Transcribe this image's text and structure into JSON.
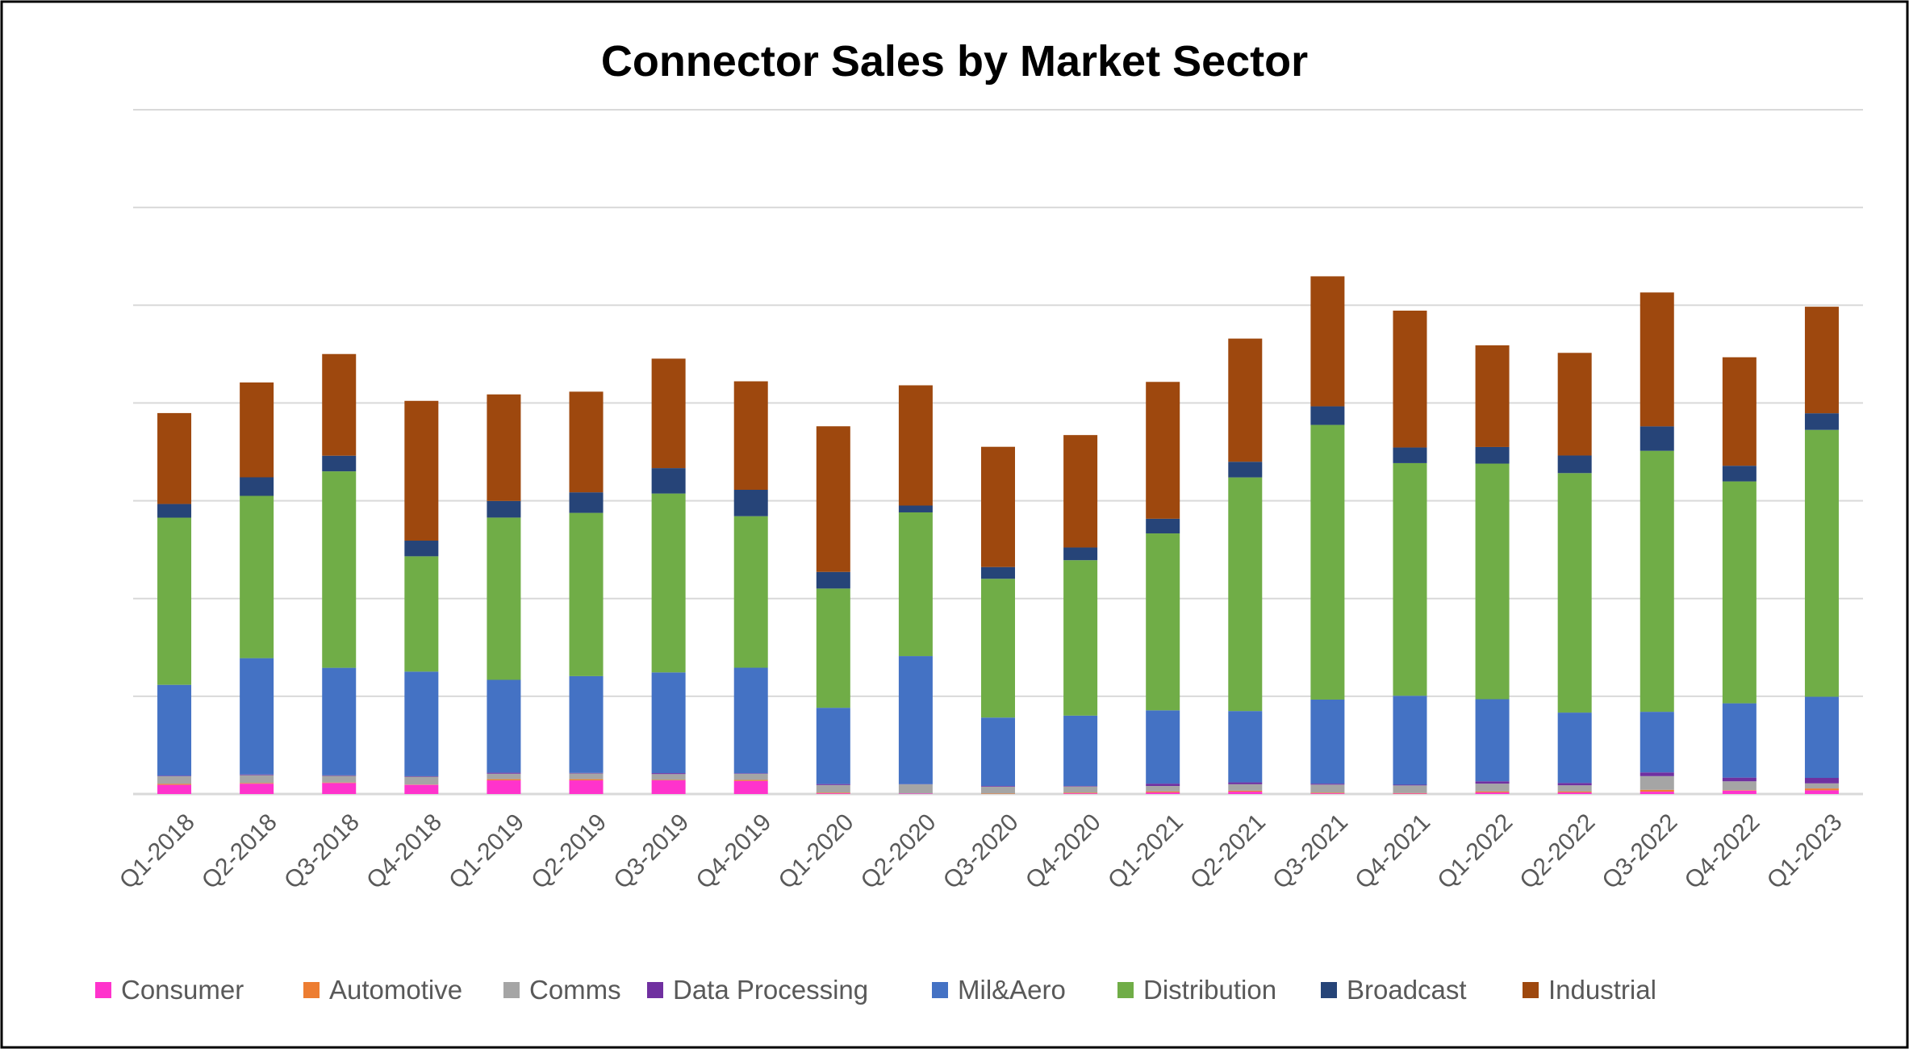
{
  "chart_data": {
    "type": "bar",
    "stacked": true,
    "title": "Connector Sales by Market Sector",
    "xlabel": "",
    "ylabel": "",
    "ylim": [
      0,
      700
    ],
    "y_gridline_step": 100,
    "y_tick_labels_shown": false,
    "grid": true,
    "legend_position": "bottom",
    "categories": [
      "Q1-2018",
      "Q2-2018",
      "Q3-2018",
      "Q4-2018",
      "Q1-2019",
      "Q2-2019",
      "Q3-2019",
      "Q4-2019",
      "Q1-2020",
      "Q2-2020",
      "Q3-2020",
      "Q4-2020",
      "Q1-2021",
      "Q2-2021",
      "Q3-2021",
      "Q4-2021",
      "Q1-2022",
      "Q2-2022",
      "Q3-2022",
      "Q4-2022",
      "Q1-2023"
    ],
    "series": [
      {
        "name": "Consumer",
        "color": "#FF33CC",
        "values": [
          9.4,
          10.6,
          11.3,
          9.4,
          14,
          14,
          14,
          13.4,
          0.7,
          0.5,
          0,
          0.7,
          1.6,
          2.4,
          0.7,
          0.5,
          1.6,
          1.6,
          2.4,
          3.5,
          3.8
        ]
      },
      {
        "name": "Automotive",
        "color": "#ED7D31",
        "values": [
          1,
          0.7,
          0.5,
          0.3,
          1.2,
          1.2,
          0.5,
          1,
          0.7,
          0,
          0.5,
          0.7,
          1,
          1,
          0.7,
          0.5,
          1,
          1,
          1.9,
          0.5,
          1.9
        ]
      },
      {
        "name": "Comms",
        "color": "#A5A5A5",
        "values": [
          7.8,
          8,
          6.8,
          8,
          5.6,
          5.9,
          5.9,
          6.3,
          7.8,
          9.4,
          7,
          6.3,
          5.6,
          6.6,
          8.2,
          7.8,
          8,
          6.3,
          14,
          9,
          5.2
        ]
      },
      {
        "name": "Data Processing",
        "color": "#7030A0",
        "values": [
          0.5,
          0.7,
          0.5,
          0.5,
          1,
          0.5,
          1,
          0.5,
          1,
          0.2,
          0.7,
          0.5,
          2.4,
          1.9,
          1,
          0.7,
          2.4,
          2.4,
          3.8,
          3.8,
          5.6
        ]
      },
      {
        "name": "Mil&Aero",
        "color": "#4472C4",
        "values": [
          93,
          119,
          110,
          107,
          95,
          99,
          103,
          108,
          78,
          131,
          70,
          72,
          75,
          73,
          86,
          91,
          84,
          72,
          62,
          76,
          83
        ]
      },
      {
        "name": "Distribution",
        "color": "#70AD47",
        "values": [
          171,
          166,
          201,
          118,
          166,
          167,
          183,
          155,
          122,
          147,
          142,
          159,
          181,
          239,
          281,
          238,
          241,
          245,
          267,
          227,
          273
        ]
      },
      {
        "name": "Broadcast",
        "color": "#264478",
        "values": [
          14,
          19,
          16,
          16,
          17,
          21,
          26,
          27,
          17,
          7,
          12,
          13,
          15,
          16,
          19,
          16,
          17,
          18,
          25,
          16,
          17
        ]
      },
      {
        "name": "Industrial",
        "color": "#9E480E",
        "values": [
          93,
          97,
          104,
          143,
          109,
          103,
          112,
          111,
          149,
          123,
          123,
          115,
          140,
          126,
          133,
          140,
          104,
          105,
          137,
          111,
          109
        ]
      }
    ]
  }
}
